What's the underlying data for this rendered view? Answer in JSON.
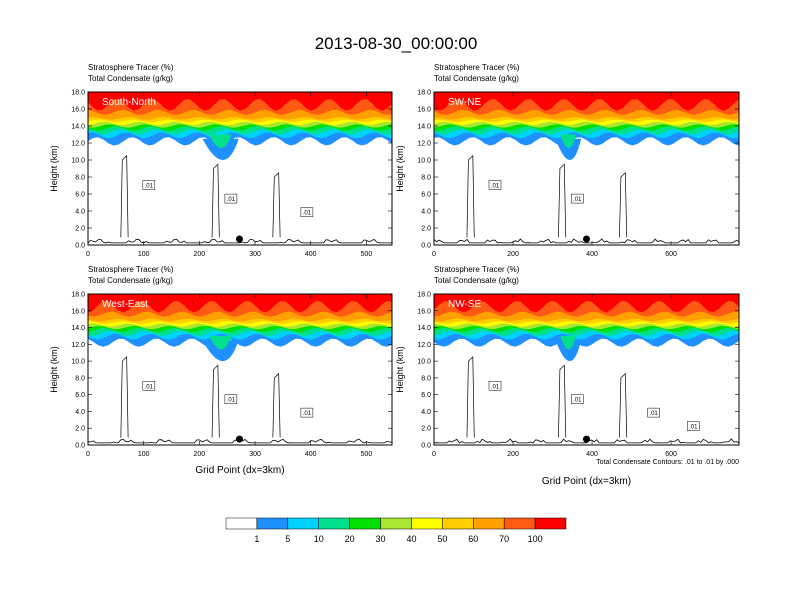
{
  "title": "2013-08-30_00:00:00",
  "colors": {
    "levels": [
      "#ffffff",
      "#1e90ff",
      "#00d2ff",
      "#00e08c",
      "#00e000",
      "#a8e632",
      "#ffff00",
      "#ffcd00",
      "#ffa000",
      "#ff5a14",
      "#ff0000"
    ],
    "contour": "#000000",
    "frame": "#000000"
  },
  "colorbar": {
    "labels": [
      "1",
      "5",
      "10",
      "20",
      "30",
      "40",
      "50",
      "60",
      "70",
      "100"
    ]
  },
  "footnote": "Total Condensate Contours: .01 to .01 by .000",
  "chart_data": [
    {
      "type": "heatmap",
      "name": "South-North",
      "label": "South-North",
      "header_left_1": "Stratosphere Tracer   (%)",
      "header_left_2": "Total Condensate   (g/kg)",
      "ylabel": "Height (km)",
      "xlabel": "",
      "xlim": [
        0,
        546
      ],
      "ylim": [
        0,
        18
      ],
      "xticks": [
        "0",
        "100",
        "200",
        "300",
        "400",
        "500"
      ],
      "xtick_values": [
        0,
        100,
        200,
        300,
        400,
        500
      ],
      "yticks": [
        "0.0",
        "2.0",
        "4.0",
        "6.0",
        "8.0",
        "10.0",
        "12.0",
        "14.0",
        "16.0",
        "18.0"
      ],
      "marker_x": 272,
      "contour_labels": [
        ".01",
        ".01",
        ".01"
      ]
    },
    {
      "type": "heatmap",
      "name": "SW-NE",
      "label": "SW-NE",
      "header_left_1": "Stratosphere Tracer   (%)",
      "header_left_2": "Total Condensate   (g/kg)",
      "ylabel": "Height (km)",
      "xlabel": "",
      "xlim": [
        0,
        772
      ],
      "ylim": [
        0,
        18
      ],
      "xticks": [
        "0",
        "200",
        "400",
        "600"
      ],
      "xtick_values": [
        0,
        200,
        400,
        600
      ],
      "yticks": [
        "0.0",
        "2.0",
        "4.0",
        "6.0",
        "8.0",
        "10.0",
        "12.0",
        "14.0",
        "16.0",
        "18.0"
      ],
      "marker_x": 386,
      "contour_labels": [
        ".01",
        ".01"
      ]
    },
    {
      "type": "heatmap",
      "name": "West-East",
      "label": "West-East",
      "header_left_1": "Stratosphere Tracer   (%)",
      "header_left_2": "Total Condensate   (g/kg)",
      "ylabel": "Height (km)",
      "xlabel": "Grid Point (dx=3km)",
      "xlim": [
        0,
        546
      ],
      "ylim": [
        0,
        18
      ],
      "xticks": [
        "0",
        "100",
        "200",
        "300",
        "400",
        "500"
      ],
      "xtick_values": [
        0,
        100,
        200,
        300,
        400,
        500
      ],
      "yticks": [
        "0.0",
        "2.0",
        "4.0",
        "6.0",
        "8.0",
        "10.0",
        "12.0",
        "14.0",
        "16.0",
        "18.0"
      ],
      "marker_x": 272,
      "contour_labels": [
        ".01",
        ".01",
        ".01"
      ]
    },
    {
      "type": "heatmap",
      "name": "NW-SE",
      "label": "NW-SE",
      "header_left_1": "Stratosphere Tracer   (%)",
      "header_left_2": "Total Condensate   (g/kg)",
      "ylabel": "Height (km)",
      "xlabel": "Grid Point (dx=3km)",
      "xlim": [
        0,
        772
      ],
      "ylim": [
        0,
        18
      ],
      "xticks": [
        "0",
        "200",
        "400",
        "600"
      ],
      "xtick_values": [
        0,
        200,
        400,
        600
      ],
      "yticks": [
        "0.0",
        "2.0",
        "4.0",
        "6.0",
        "8.0",
        "10.0",
        "12.0",
        "14.0",
        "16.0",
        "18.0"
      ],
      "marker_x": 386,
      "contour_labels": [
        ".01",
        ".01",
        ".01",
        ".01"
      ]
    }
  ]
}
